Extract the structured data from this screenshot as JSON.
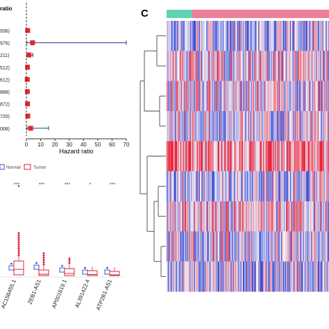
{
  "figure": {
    "panel_c_label": "C"
  },
  "chart_data": [
    {
      "type": "scatter",
      "panel": "forest",
      "title": "",
      "header_label": "ratio",
      "xlabel": "Hazard ratio",
      "xlim": [
        0,
        70
      ],
      "xticks": [
        0,
        10,
        20,
        30,
        40,
        50,
        60,
        70
      ],
      "reference_line": 0,
      "colors": {
        "point": "#e8242b",
        "ci": "#2a3590",
        "axis": "#333333"
      },
      "rows": [
        {
          "label": "936)",
          "hr": 0.9,
          "low": 0.6,
          "high": 1.3
        },
        {
          "label": "976)",
          "hr": 4.3,
          "low": 0.3,
          "high": 70
        },
        {
          "label": "211)",
          "hr": 1.8,
          "low": 0.4,
          "high": 4.6
        },
        {
          "label": "512)",
          "hr": 0.8,
          "low": 0.4,
          "high": 1.2
        },
        {
          "label": "612)",
          "hr": 0.6,
          "low": 0.3,
          "high": 1.0
        },
        {
          "label": "888)",
          "hr": 0.7,
          "low": 0.4,
          "high": 1.1
        },
        {
          "label": "872)",
          "hr": 0.8,
          "low": 0.5,
          "high": 1.2
        },
        {
          "label": "720)",
          "hr": 1.0,
          "low": 0.5,
          "high": 1.6
        },
        {
          "label": "008)",
          "hr": 3.0,
          "low": 0.4,
          "high": 15.5
        }
      ]
    },
    {
      "type": "box",
      "panel": "boxplot",
      "title": "",
      "legend": [
        "Normal",
        "Tumor"
      ],
      "legend_position": "top",
      "colors": {
        "Normal": "#3a4fd0",
        "Tumor": "#d8233a"
      },
      "categories": [
        "AC156455.1",
        "ZEB1-AS1",
        "AP001619.1",
        "AL391422.4",
        "ATP2B1-AS1"
      ],
      "significance": [
        "***",
        "***",
        "***",
        "*",
        "***"
      ],
      "ylim": [
        0,
        10
      ]
    },
    {
      "type": "heatmap",
      "panel": "C",
      "title": "",
      "annotation_groups": [
        {
          "name": "",
          "fraction": 0.155,
          "color": "#5fd4b4"
        },
        {
          "name": "",
          "fraction": 0.845,
          "color": "#ee7f98"
        }
      ],
      "rows": 9,
      "columns": 200,
      "color_scale": {
        "low": "#3a4fd6",
        "mid": "#f4f4fa",
        "high": "#e8243a"
      },
      "row_bias": [
        -0.35,
        0.1,
        0.0,
        -0.15,
        0.55,
        -0.25,
        0.05,
        -0.1,
        -0.3
      ],
      "dendrogram": true
    }
  ]
}
